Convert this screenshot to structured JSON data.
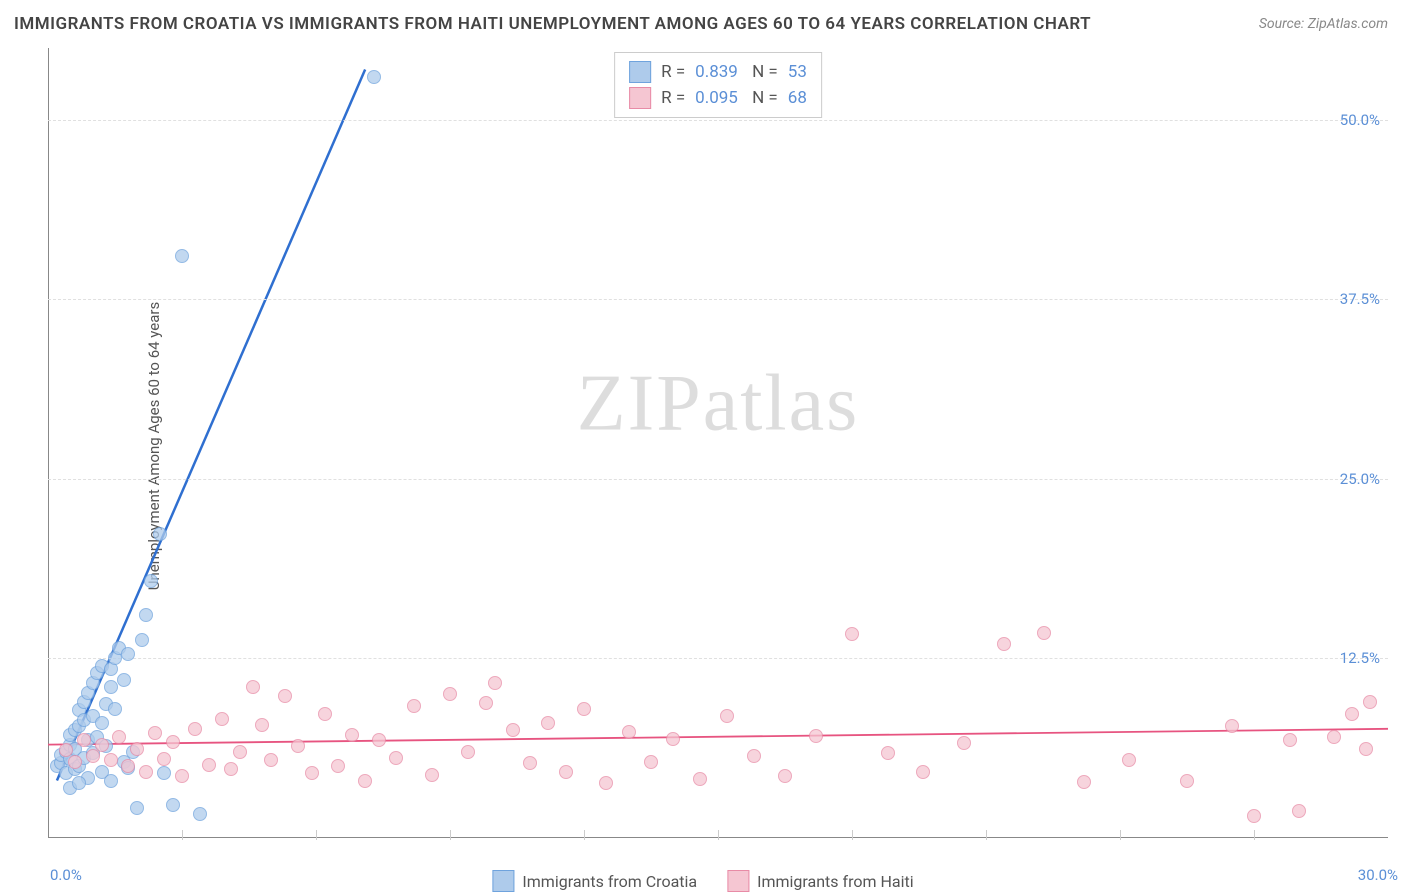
{
  "title": "IMMIGRANTS FROM CROATIA VS IMMIGRANTS FROM HAITI UNEMPLOYMENT AMONG AGES 60 TO 64 YEARS CORRELATION CHART",
  "source": "Source: ZipAtlas.com",
  "ylabel": "Unemployment Among Ages 60 to 64 years",
  "watermark_a": "ZIP",
  "watermark_b": "atlas",
  "chart": {
    "type": "scatter",
    "xlim": [
      0,
      30
    ],
    "ylim": [
      0,
      55
    ],
    "xtick_min_label": "0.0%",
    "xtick_max_label": "30.0%",
    "yticks": [
      12.5,
      25.0,
      37.5,
      50.0
    ],
    "ytick_labels": [
      "12.5%",
      "25.0%",
      "37.5%",
      "50.0%"
    ],
    "xticks_minor": [
      3,
      6,
      9,
      12,
      15,
      18,
      21,
      24,
      27
    ],
    "background_color": "#ffffff",
    "grid_color": "#e0e0e0",
    "point_radius": 7,
    "point_border_width": 1.2
  },
  "series": [
    {
      "name": "Immigrants from Croatia",
      "color_fill": "#aecbeb",
      "color_stroke": "#6fa3dd",
      "line_color": "#2f6fd0",
      "line_width": 2.5,
      "r": "0.839",
      "n": "53",
      "trend": {
        "x1": 0.2,
        "y1": 4.0,
        "x2": 7.1,
        "y2": 53.5
      },
      "points": [
        [
          0.2,
          5.0
        ],
        [
          0.3,
          5.2
        ],
        [
          0.3,
          5.8
        ],
        [
          0.4,
          4.5
        ],
        [
          0.4,
          6.0
        ],
        [
          0.5,
          5.5
        ],
        [
          0.5,
          6.5
        ],
        [
          0.5,
          7.2
        ],
        [
          0.6,
          4.8
        ],
        [
          0.6,
          6.2
        ],
        [
          0.6,
          7.5
        ],
        [
          0.7,
          5.0
        ],
        [
          0.7,
          7.8
        ],
        [
          0.7,
          8.9
        ],
        [
          0.8,
          5.6
        ],
        [
          0.8,
          8.2
        ],
        [
          0.8,
          9.5
        ],
        [
          0.9,
          4.2
        ],
        [
          0.9,
          6.8
        ],
        [
          0.9,
          10.1
        ],
        [
          1.0,
          5.9
        ],
        [
          1.0,
          8.5
        ],
        [
          1.0,
          10.8
        ],
        [
          1.1,
          7.0
        ],
        [
          1.1,
          11.5
        ],
        [
          1.2,
          4.6
        ],
        [
          1.2,
          8.0
        ],
        [
          1.2,
          12.0
        ],
        [
          1.3,
          6.4
        ],
        [
          1.3,
          9.3
        ],
        [
          1.4,
          10.5
        ],
        [
          1.4,
          11.8
        ],
        [
          1.5,
          9.0
        ],
        [
          1.5,
          12.5
        ],
        [
          1.6,
          13.2
        ],
        [
          1.7,
          5.3
        ],
        [
          1.7,
          11.0
        ],
        [
          1.8,
          4.9
        ],
        [
          1.8,
          12.8
        ],
        [
          1.9,
          6.0
        ],
        [
          2.0,
          2.1
        ],
        [
          2.1,
          13.8
        ],
        [
          2.2,
          15.5
        ],
        [
          2.3,
          17.9
        ],
        [
          2.5,
          21.2
        ],
        [
          2.8,
          2.3
        ],
        [
          3.4,
          1.7
        ],
        [
          1.4,
          4.0
        ],
        [
          0.5,
          3.5
        ],
        [
          0.7,
          3.8
        ],
        [
          2.6,
          4.5
        ],
        [
          3.0,
          40.5
        ],
        [
          7.3,
          53.0
        ]
      ]
    },
    {
      "name": "Immigrants from Haiti",
      "color_fill": "#f5c6d2",
      "color_stroke": "#e88ba6",
      "line_color": "#e75480",
      "line_width": 1.8,
      "r": "0.095",
      "n": "68",
      "trend": {
        "x1": 0,
        "y1": 6.5,
        "x2": 30,
        "y2": 7.6
      },
      "points": [
        [
          0.4,
          6.1
        ],
        [
          0.6,
          5.3
        ],
        [
          0.8,
          6.8
        ],
        [
          1.0,
          5.7
        ],
        [
          1.2,
          6.5
        ],
        [
          1.4,
          5.4
        ],
        [
          1.6,
          7.0
        ],
        [
          1.8,
          5.0
        ],
        [
          2.0,
          6.2
        ],
        [
          2.2,
          4.6
        ],
        [
          2.4,
          7.3
        ],
        [
          2.6,
          5.5
        ],
        [
          2.8,
          6.7
        ],
        [
          3.0,
          4.3
        ],
        [
          3.3,
          7.6
        ],
        [
          3.6,
          5.1
        ],
        [
          3.9,
          8.3
        ],
        [
          4.1,
          4.8
        ],
        [
          4.3,
          6.0
        ],
        [
          4.6,
          10.5
        ],
        [
          4.8,
          7.9
        ],
        [
          5.0,
          5.4
        ],
        [
          5.3,
          9.9
        ],
        [
          5.6,
          6.4
        ],
        [
          5.9,
          4.5
        ],
        [
          6.2,
          8.6
        ],
        [
          6.5,
          5.0
        ],
        [
          6.8,
          7.2
        ],
        [
          7.1,
          4.0
        ],
        [
          7.4,
          6.8
        ],
        [
          7.8,
          5.6
        ],
        [
          8.2,
          9.2
        ],
        [
          8.6,
          4.4
        ],
        [
          9.0,
          10.0
        ],
        [
          9.4,
          6.0
        ],
        [
          9.8,
          9.4
        ],
        [
          10.0,
          10.8
        ],
        [
          10.4,
          7.5
        ],
        [
          10.8,
          5.2
        ],
        [
          11.2,
          8.0
        ],
        [
          11.6,
          4.6
        ],
        [
          12.0,
          9.0
        ],
        [
          12.5,
          3.8
        ],
        [
          13.0,
          7.4
        ],
        [
          13.5,
          5.3
        ],
        [
          14.0,
          6.9
        ],
        [
          14.6,
          4.1
        ],
        [
          15.2,
          8.5
        ],
        [
          15.8,
          5.7
        ],
        [
          16.5,
          4.3
        ],
        [
          17.2,
          7.1
        ],
        [
          18.0,
          14.2
        ],
        [
          18.8,
          5.9
        ],
        [
          19.6,
          4.6
        ],
        [
          20.5,
          6.6
        ],
        [
          21.4,
          13.5
        ],
        [
          22.3,
          14.3
        ],
        [
          23.2,
          3.9
        ],
        [
          24.2,
          5.4
        ],
        [
          25.5,
          4.0
        ],
        [
          26.5,
          7.8
        ],
        [
          27.0,
          1.5
        ],
        [
          27.8,
          6.8
        ],
        [
          28.0,
          1.9
        ],
        [
          28.8,
          7.0
        ],
        [
          29.2,
          8.6
        ],
        [
          29.5,
          6.2
        ],
        [
          29.6,
          9.5
        ]
      ]
    }
  ],
  "legend": {
    "label_a": "Immigrants from Croatia",
    "label_b": "Immigrants from Haiti"
  }
}
